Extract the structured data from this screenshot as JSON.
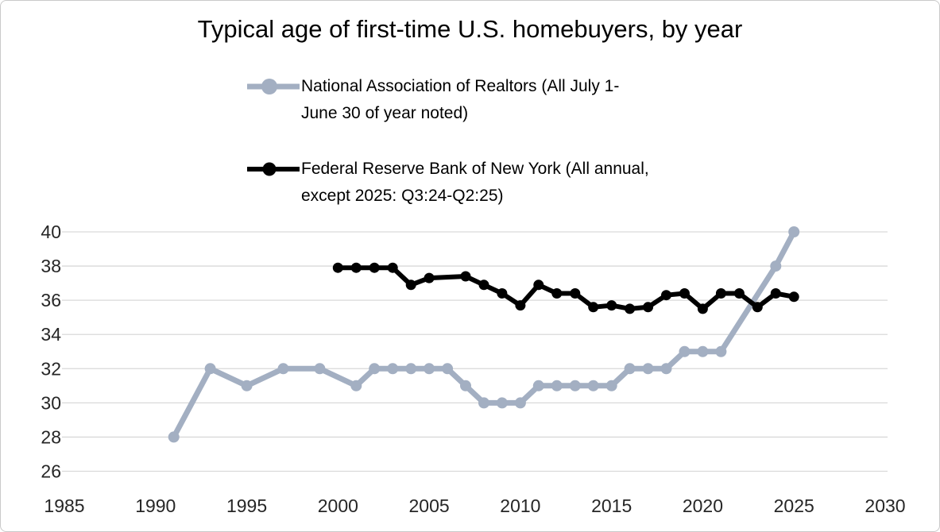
{
  "title": "Typical age of first-time U.S. homebuyers, by year",
  "legend": {
    "items": [
      {
        "label": "National Association of Realtors (All July 1-June 30 of year noted)",
        "line1": "National Association of Realtors (All July 1-",
        "line2": "June 30 of year noted)",
        "color": "#a3afc2"
      },
      {
        "label": "Federal Reserve Bank of New York (All annual, except 2025: Q3:24-Q2:25)",
        "line1": "Federal Reserve Bank of New York (All annual,",
        "line2": "except 2025: Q3:24-Q2:25)",
        "color": "#000000"
      }
    ]
  },
  "colors": {
    "nar_series": "#a3afc2",
    "fed_series": "#000000",
    "gridline": "#d9d9d9",
    "axis_text": "#262626",
    "title_text": "#000000",
    "frame_border": "#c9c9c9",
    "background": "#ffffff"
  },
  "chart_data": {
    "type": "line",
    "title": "Typical age of first-time U.S. homebuyers, by year",
    "xlabel": "",
    "ylabel": "",
    "xlim": [
      1985,
      2030
    ],
    "ylim": [
      26,
      40
    ],
    "x_ticks": [
      "1985",
      "1990",
      "1995",
      "2000",
      "2005",
      "2010",
      "2015",
      "2020",
      "2025",
      "2030"
    ],
    "y_ticks": [
      "26",
      "28",
      "30",
      "32",
      "34",
      "36",
      "38",
      "40"
    ],
    "grid": "horizontal-only",
    "legend_position": "above-plot-left",
    "series": [
      {
        "name": "National Association of Realtors (All July 1-June 30 of year noted)",
        "color": "#a3afc2",
        "marker": "circle",
        "note": "No markers for 1992, 1994, 1996, 1998, 2000, 2022, 2023; line connects straight across those years",
        "points": [
          [
            1991,
            28
          ],
          [
            1993,
            32
          ],
          [
            1995,
            31
          ],
          [
            1997,
            32
          ],
          [
            1999,
            32
          ],
          [
            2001,
            31
          ],
          [
            2002,
            32
          ],
          [
            2003,
            32
          ],
          [
            2004,
            32
          ],
          [
            2005,
            32
          ],
          [
            2006,
            32
          ],
          [
            2007,
            31
          ],
          [
            2008,
            30
          ],
          [
            2009,
            30
          ],
          [
            2010,
            30
          ],
          [
            2011,
            31
          ],
          [
            2012,
            31
          ],
          [
            2013,
            31
          ],
          [
            2014,
            31
          ],
          [
            2015,
            31
          ],
          [
            2016,
            32
          ],
          [
            2017,
            32
          ],
          [
            2018,
            32
          ],
          [
            2019,
            33
          ],
          [
            2020,
            33
          ],
          [
            2021,
            33
          ],
          [
            2024,
            38
          ],
          [
            2025,
            40
          ]
        ]
      },
      {
        "name": "Federal Reserve Bank of New York (All annual, except 2025: Q3:24-Q2:25)",
        "color": "#000000",
        "marker": "circle",
        "note": "No marker for 2006; line connects straight from 2005 to 2007",
        "points": [
          [
            2000,
            37.9
          ],
          [
            2001,
            37.9
          ],
          [
            2002,
            37.9
          ],
          [
            2003,
            37.9
          ],
          [
            2004,
            36.9
          ],
          [
            2005,
            37.3
          ],
          [
            2007,
            37.4
          ],
          [
            2008,
            36.9
          ],
          [
            2009,
            36.4
          ],
          [
            2010,
            35.7
          ],
          [
            2011,
            36.9
          ],
          [
            2012,
            36.4
          ],
          [
            2013,
            36.4
          ],
          [
            2014,
            35.6
          ],
          [
            2015,
            35.7
          ],
          [
            2016,
            35.5
          ],
          [
            2017,
            35.6
          ],
          [
            2018,
            36.3
          ],
          [
            2019,
            36.4
          ],
          [
            2020,
            35.5
          ],
          [
            2021,
            36.4
          ],
          [
            2022,
            36.4
          ],
          [
            2023,
            35.6
          ],
          [
            2024,
            36.4
          ],
          [
            2025,
            36.2
          ]
        ]
      }
    ]
  }
}
